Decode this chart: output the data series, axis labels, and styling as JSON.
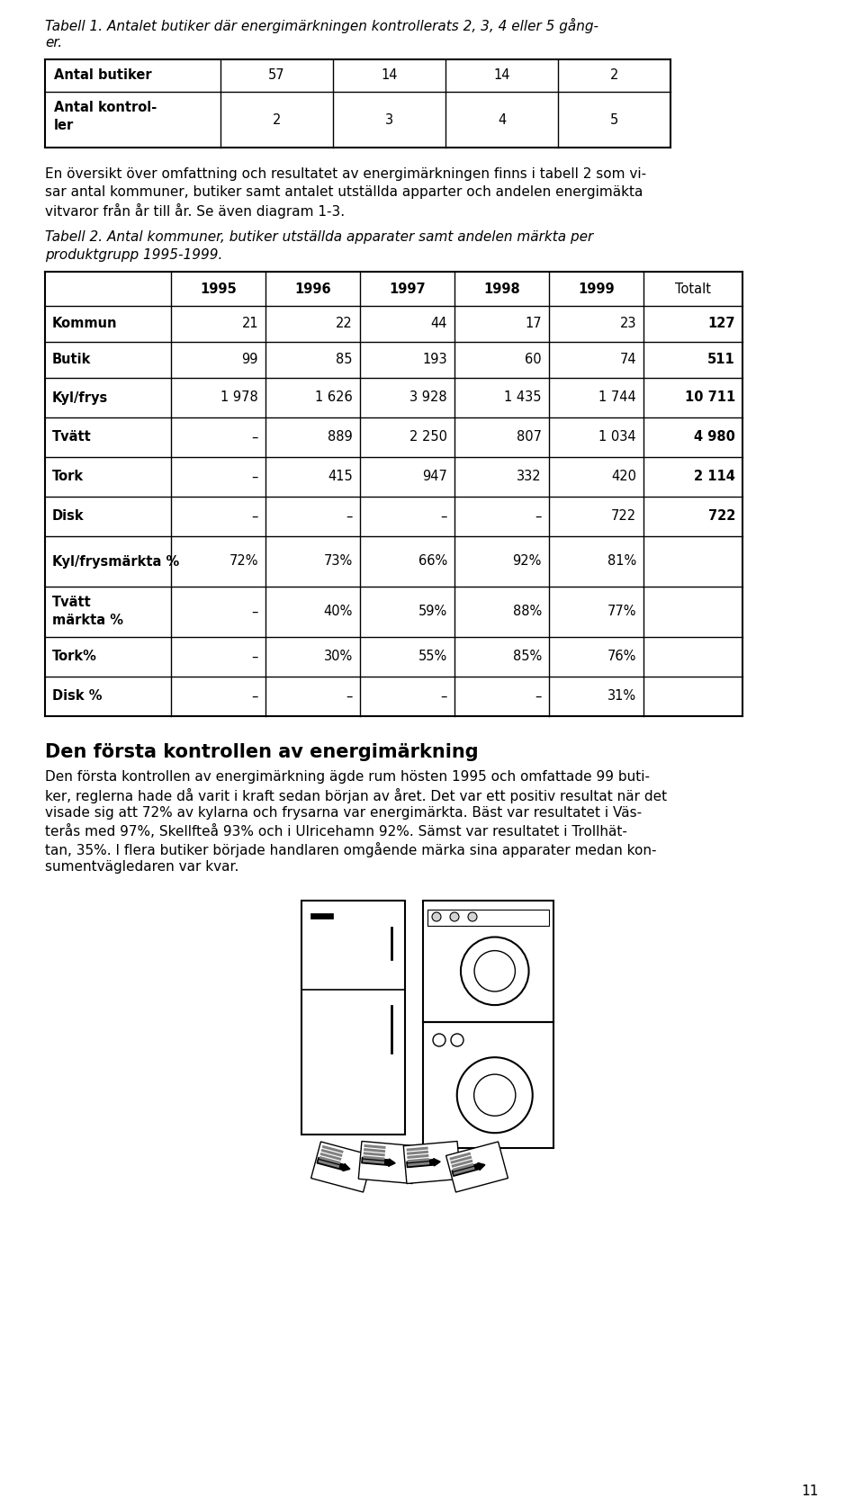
{
  "page_title1": "Tabell 1. Antalet butiker där energimärkningen kontrollerats 2, 3, 4 eller 5 gång-",
  "page_title1b": "er.",
  "table1_rows": [
    [
      "Antal butiker",
      "57",
      "14",
      "14",
      "2"
    ],
    [
      "Antal kontrol-\nler",
      "2",
      "3",
      "4",
      "5"
    ]
  ],
  "body_text": "En översikt över omfattning och resultatet av energimärkningen finns i tabell 2 som vi-\nsar antal kommuner, butiker samt antalet utställda apparter och andelen energimäkta\nvitvaror från år till år. Se även diagram 1-3.",
  "table2_title_line1": "Tabell 2. Antal kommuner, butiker utställda apparater samt andelen märkta per",
  "table2_title_line2": "produktgrupp 1995-1999.",
  "table2_col_headers": [
    "",
    "1995",
    "1996",
    "1997",
    "1998",
    "1999",
    "Totalt"
  ],
  "table2_rows": [
    [
      "Kommun",
      "21",
      "22",
      "44",
      "17",
      "23",
      "127"
    ],
    [
      "Butik",
      "99",
      "85",
      "193",
      "60",
      "74",
      "511"
    ],
    [
      "Kyl/frys",
      "1 978",
      "1 626",
      "3 928",
      "1 435",
      "1 744",
      "10 711"
    ],
    [
      "Tvätt",
      "–",
      "889",
      "2 250",
      "807",
      "1 034",
      "4 980"
    ],
    [
      "Tork",
      "–",
      "415",
      "947",
      "332",
      "420",
      "2 114"
    ],
    [
      "Disk",
      "–",
      "–",
      "–",
      "–",
      "722",
      "722"
    ],
    [
      "Kyl/frysmärkta %",
      "72%",
      "73%",
      "66%",
      "92%",
      "81%",
      ""
    ],
    [
      "Tvätt\nmärkta %",
      "–",
      "40%",
      "59%",
      "88%",
      "77%",
      ""
    ],
    [
      "Tork%",
      "–",
      "30%",
      "55%",
      "85%",
      "76%",
      ""
    ],
    [
      "Disk %",
      "–",
      "–",
      "–",
      "–",
      "31%",
      ""
    ]
  ],
  "table2_bold_totals": [
    true,
    true,
    true,
    true,
    true,
    true,
    false,
    false,
    false,
    false
  ],
  "section_title": "Den första kontrollen av energimärkning",
  "section_body_lines": [
    "Den första kontrollen av energimärkning ägde rum hösten 1995 och omfattade 99 buti-",
    "ker, reglerna hade då varit i kraft sedan början av året. Det var ett positiv resultat när det",
    "visade sig att 72% av kylarna och frysarna var energimärkta. Bäst var resultatet i Väs-",
    "terås med 97%, Skellfteå 93% och i Ulricehamn 92%. Sämst var resultatet i Trollhät-",
    "tan, 35%. I flera butiker började handlaren omgående märka sina apparater medan kon-",
    "sumentvägledaren var kvar."
  ],
  "page_number": "11",
  "bg_color": "#ffffff"
}
